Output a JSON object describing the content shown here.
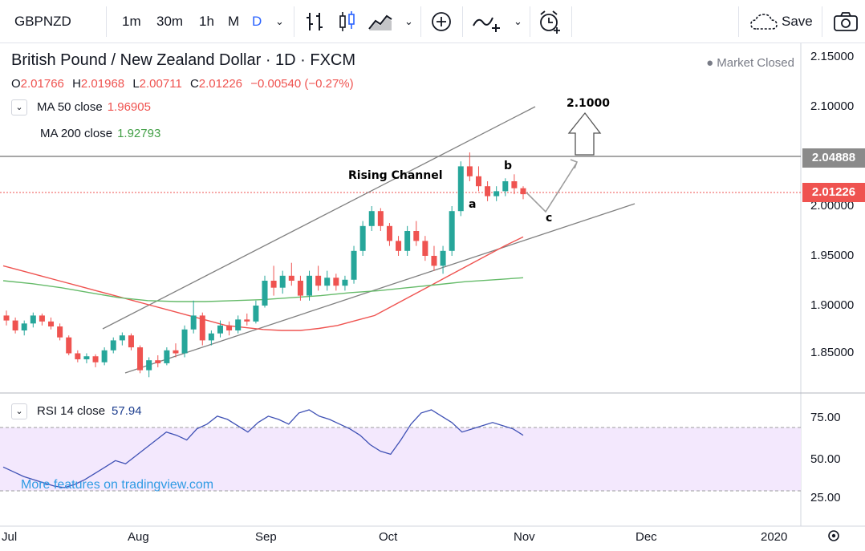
{
  "toolbar": {
    "symbol": "GBPNZD",
    "intervals": [
      "1m",
      "30m",
      "1h",
      "M",
      "D"
    ],
    "active_interval": "D",
    "save_label": "Save"
  },
  "legend": {
    "title": "British Pound / New Zealand Dollar · 1D · FXCM",
    "ohlc": {
      "o_label": "O",
      "o": "2.01766",
      "h_label": "H",
      "h": "2.01968",
      "l_label": "L",
      "l": "2.00711",
      "c_label": "C",
      "c": "2.01226",
      "change": "−0.00540 (−0.27%)"
    },
    "market_status": "● Market Closed",
    "ma50": {
      "label": "MA 50 close",
      "value": "1.96905"
    },
    "ma200": {
      "label": "MA 200 close",
      "value": "1.92793"
    }
  },
  "rsi": {
    "label": "RSI 14 close",
    "value": "57.94"
  },
  "watermark": "More features on tradingview.com",
  "price_axis": [
    "2.15000",
    "2.10000",
    "2.05000",
    "2.00000",
    "1.95000",
    "1.90000",
    "1.85000"
  ],
  "price_tags": {
    "hline": "2.04888",
    "last": "2.01226"
  },
  "rsi_axis": [
    "75.00",
    "50.00",
    "25.00"
  ],
  "time_axis": [
    "Jul",
    "Aug",
    "Sep",
    "Oct",
    "Nov",
    "Dec",
    "2020"
  ],
  "annotations": {
    "channel": "Rising Channel",
    "target": "2.1000",
    "wave_a": "a",
    "wave_b": "b",
    "wave_c": "c"
  },
  "colors": {
    "up": "#26a69a",
    "down": "#ef5350",
    "ma50": "#ef5350",
    "ma200": "#66bb6a",
    "rsi": "#3f51b5",
    "rsi_band": "#f3e8fd"
  },
  "chart_data": {
    "type": "candlestick",
    "symbol": "GBPNZD",
    "ylim": [
      1.82,
      2.16
    ],
    "candles": [
      [
        1.89,
        1.895,
        1.88,
        1.885
      ],
      [
        1.885,
        1.888,
        1.872,
        1.875
      ],
      [
        1.875,
        1.885,
        1.87,
        1.882
      ],
      [
        1.882,
        1.893,
        1.878,
        1.89
      ],
      [
        1.89,
        1.892,
        1.88,
        1.884
      ],
      [
        1.884,
        1.888,
        1.876,
        1.879
      ],
      [
        1.879,
        1.882,
        1.865,
        1.868
      ],
      [
        1.868,
        1.87,
        1.85,
        1.852
      ],
      [
        1.852,
        1.855,
        1.843,
        1.846
      ],
      [
        1.846,
        1.852,
        1.842,
        1.849
      ],
      [
        1.849,
        1.851,
        1.838,
        1.843
      ],
      [
        1.843,
        1.858,
        1.84,
        1.855
      ],
      [
        1.855,
        1.868,
        1.852,
        1.865
      ],
      [
        1.865,
        1.873,
        1.86,
        1.87
      ],
      [
        1.87,
        1.872,
        1.855,
        1.858
      ],
      [
        1.858,
        1.86,
        1.832,
        1.835
      ],
      [
        1.835,
        1.848,
        1.828,
        1.845
      ],
      [
        1.845,
        1.85,
        1.838,
        1.842
      ],
      [
        1.842,
        1.858,
        1.84,
        1.855
      ],
      [
        1.855,
        1.862,
        1.848,
        1.852
      ],
      [
        1.852,
        1.88,
        1.848,
        1.876
      ],
      [
        1.876,
        1.905,
        1.872,
        1.89
      ],
      [
        1.89,
        1.893,
        1.86,
        1.865
      ],
      [
        1.865,
        1.875,
        1.86,
        1.872
      ],
      [
        1.872,
        1.885,
        1.868,
        1.88
      ],
      [
        1.88,
        1.884,
        1.87,
        1.875
      ],
      [
        1.875,
        1.89,
        1.872,
        1.886
      ],
      [
        1.886,
        1.892,
        1.88,
        1.884
      ],
      [
        1.884,
        1.905,
        1.882,
        1.9
      ],
      [
        1.9,
        1.93,
        1.898,
        1.925
      ],
      [
        1.925,
        1.94,
        1.91,
        1.918
      ],
      [
        1.918,
        1.935,
        1.912,
        1.93
      ],
      [
        1.93,
        1.943,
        1.92,
        1.925
      ],
      [
        1.925,
        1.93,
        1.905,
        1.91
      ],
      [
        1.91,
        1.935,
        1.905,
        1.93
      ],
      [
        1.93,
        1.94,
        1.915,
        1.92
      ],
      [
        1.92,
        1.935,
        1.915,
        1.928
      ],
      [
        1.928,
        1.932,
        1.915,
        1.92
      ],
      [
        1.92,
        1.93,
        1.915,
        1.926
      ],
      [
        1.926,
        1.96,
        1.922,
        1.955
      ],
      [
        1.955,
        1.985,
        1.95,
        1.98
      ],
      [
        1.98,
        2.0,
        1.975,
        1.995
      ],
      [
        1.995,
        1.998,
        1.975,
        1.98
      ],
      [
        1.98,
        1.983,
        1.96,
        1.965
      ],
      [
        1.965,
        1.97,
        1.95,
        1.955
      ],
      [
        1.955,
        1.98,
        1.95,
        1.975
      ],
      [
        1.975,
        1.985,
        1.96,
        1.965
      ],
      [
        1.965,
        1.97,
        1.945,
        1.95
      ],
      [
        1.95,
        1.96,
        1.935,
        1.94
      ],
      [
        1.94,
        1.96,
        1.932,
        1.955
      ],
      [
        1.955,
        2.0,
        1.95,
        1.995
      ],
      [
        1.995,
        2.045,
        1.99,
        2.04
      ],
      [
        2.04,
        2.054,
        2.025,
        2.03
      ],
      [
        2.03,
        2.04,
        2.015,
        2.02
      ],
      [
        2.02,
        2.025,
        2.005,
        2.01
      ],
      [
        2.01,
        2.02,
        2.005,
        2.015
      ],
      [
        2.015,
        2.028,
        2.01,
        2.025
      ],
      [
        2.025,
        2.032,
        2.012,
        2.018
      ],
      [
        2.018,
        2.02,
        2.007,
        2.012
      ]
    ],
    "ma50": [
      1.94,
      1.935,
      1.93,
      1.925,
      1.92,
      1.915,
      1.91,
      1.905,
      1.9,
      1.895,
      1.89,
      1.885,
      1.88,
      1.878,
      1.876,
      1.875,
      1.875,
      1.877,
      1.88,
      1.885,
      1.89,
      1.9,
      1.91,
      1.92,
      1.93,
      1.94,
      1.95,
      1.96,
      1.969
    ],
    "ma200": [
      1.925,
      1.922,
      1.918,
      1.913,
      1.908,
      1.905,
      1.904,
      1.904,
      1.905,
      1.906,
      1.908,
      1.91,
      1.913,
      1.915,
      1.918,
      1.921,
      1.924,
      1.926,
      1.928
    ],
    "rsi": [
      38,
      35,
      32,
      30,
      28,
      26,
      25,
      27,
      30,
      34,
      38,
      42,
      40,
      45,
      50,
      55,
      60,
      58,
      55,
      62,
      65,
      70,
      68,
      64,
      60,
      66,
      70,
      68,
      65,
      72,
      74,
      70,
      68,
      65,
      62,
      58,
      52,
      48,
      46,
      55,
      65,
      72,
      74,
      70,
      66,
      60,
      62,
      64,
      66,
      64,
      62,
      58
    ],
    "rsi_levels": [
      70,
      30
    ]
  }
}
